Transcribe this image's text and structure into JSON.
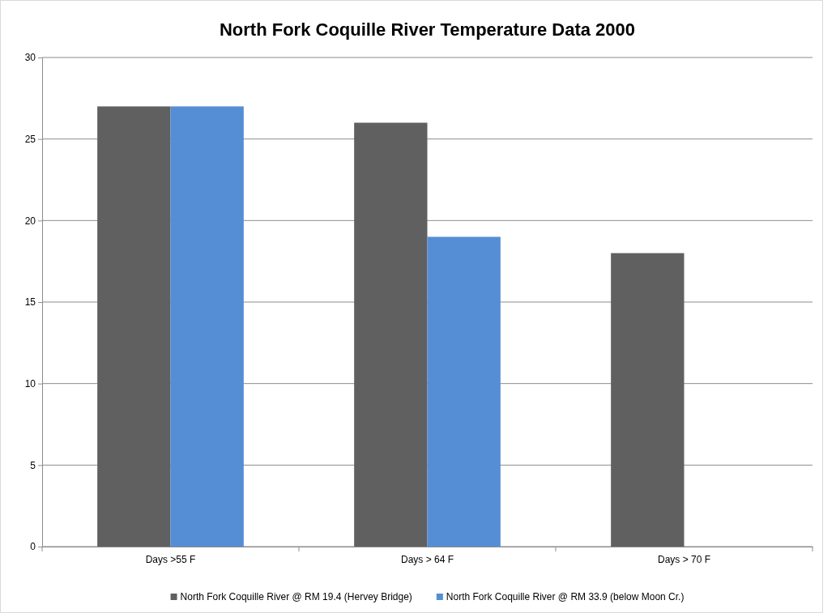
{
  "chart_data": {
    "type": "bar",
    "title": "North Fork Coquille River Temperature Data 2000",
    "categories": [
      "Days  >55 F",
      "Days > 64 F",
      "Days > 70 F"
    ],
    "series": [
      {
        "name": "North Fork Coquille River @ RM 19.4 (Hervey Bridge)",
        "color": "#606060",
        "values": [
          27,
          26,
          18
        ]
      },
      {
        "name": "North Fork Coquille River @  RM 33.9 (below Moon Cr.)",
        "color": "#558ed5",
        "values": [
          27,
          19,
          null
        ]
      }
    ],
    "ylim": [
      0,
      30
    ],
    "yticks": [
      0,
      5,
      10,
      15,
      20,
      25,
      30
    ],
    "grid": "y",
    "legend": "bottom"
  }
}
